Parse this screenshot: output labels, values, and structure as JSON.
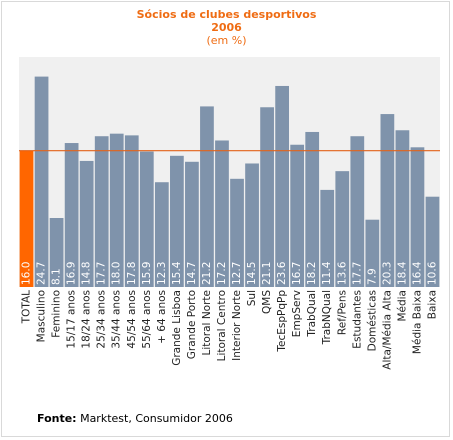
{
  "chart_data": {
    "type": "bar",
    "title": "Sócios de clubes desportivos",
    "year": "2006",
    "subtitle": "(em %)",
    "categories": [
      "TOTAL",
      "Masculino",
      "Feminino",
      "15/17 anos",
      "18/24 anos",
      "25/34 anos",
      "35/44 anos",
      "45/54 anos",
      "55/64 anos",
      "+ 64 anos",
      "Grande Lisboa",
      "Grande Porto",
      "Litoral Norte",
      "Litoral Centro",
      "Interior Norte",
      "Sul",
      "QMS",
      "TecEspPqPp",
      "EmpServ",
      "TrabQual",
      "TrabNQual",
      "Ref/Pens",
      "Estudantes",
      "Domésticas",
      "Alta/Média Alta",
      "Média",
      "Média Baixa",
      "Baixa"
    ],
    "values": [
      16.0,
      24.7,
      8.1,
      16.9,
      14.8,
      17.7,
      18.0,
      17.8,
      15.9,
      12.3,
      15.4,
      14.7,
      21.2,
      17.2,
      12.7,
      14.5,
      21.1,
      23.6,
      16.7,
      18.2,
      11.4,
      13.6,
      17.7,
      7.9,
      20.3,
      18.4,
      16.4,
      10.6
    ],
    "value_labels": [
      "16.0",
      "24.7",
      "8.1",
      "16.9",
      "14.8",
      "17.7",
      "18.0",
      "17.8",
      "15.9",
      "12.3",
      "15.4",
      "14.7",
      "21.2",
      "17.2",
      "12.7",
      "14.5",
      "21.1",
      "23.6",
      "16.7",
      "18.2",
      "11.4",
      "13.6",
      "17.7",
      "7.9",
      "20.3",
      "18.4",
      "16.4",
      "10.6"
    ],
    "reference_line": 16.0,
    "ylim": [
      0,
      27
    ],
    "colors": {
      "bar": "#7f93ab",
      "highlight_bar": "#ff6600",
      "reference_line": "#e2631a",
      "plot_bg": "#f0f0f0",
      "title": "#ef6c13"
    }
  },
  "source": {
    "label": "Fonte:",
    "text": " Marktest, Consumidor 2006"
  }
}
